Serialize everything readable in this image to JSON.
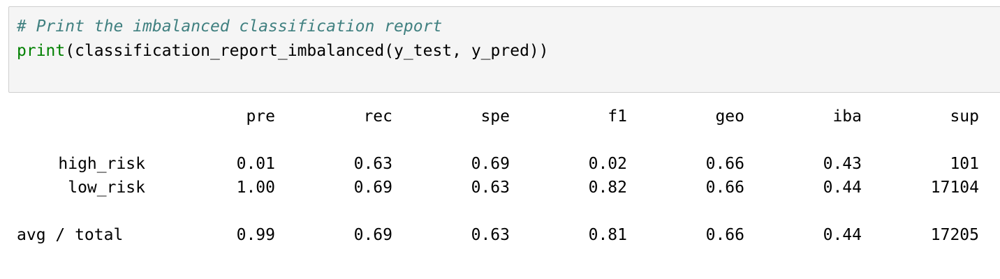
{
  "code_cell": {
    "comment": "# Print the imbalanced classification report",
    "builtin": "print",
    "call_rest": "(classification_report_imbalanced(y_test, y_pred))"
  },
  "report": {
    "headers": [
      "pre",
      "rec",
      "spe",
      "f1",
      "geo",
      "iba",
      "sup"
    ],
    "rows": [
      {
        "label": "high_risk",
        "values": [
          "0.01",
          "0.63",
          "0.69",
          "0.02",
          "0.66",
          "0.43",
          "101"
        ]
      },
      {
        "label": "low_risk",
        "values": [
          "1.00",
          "0.69",
          "0.63",
          "0.82",
          "0.66",
          "0.44",
          "17104"
        ]
      }
    ],
    "avg": {
      "label": "avg / total",
      "values": [
        "0.99",
        "0.69",
        "0.63",
        "0.81",
        "0.66",
        "0.44",
        "17205"
      ]
    }
  }
}
